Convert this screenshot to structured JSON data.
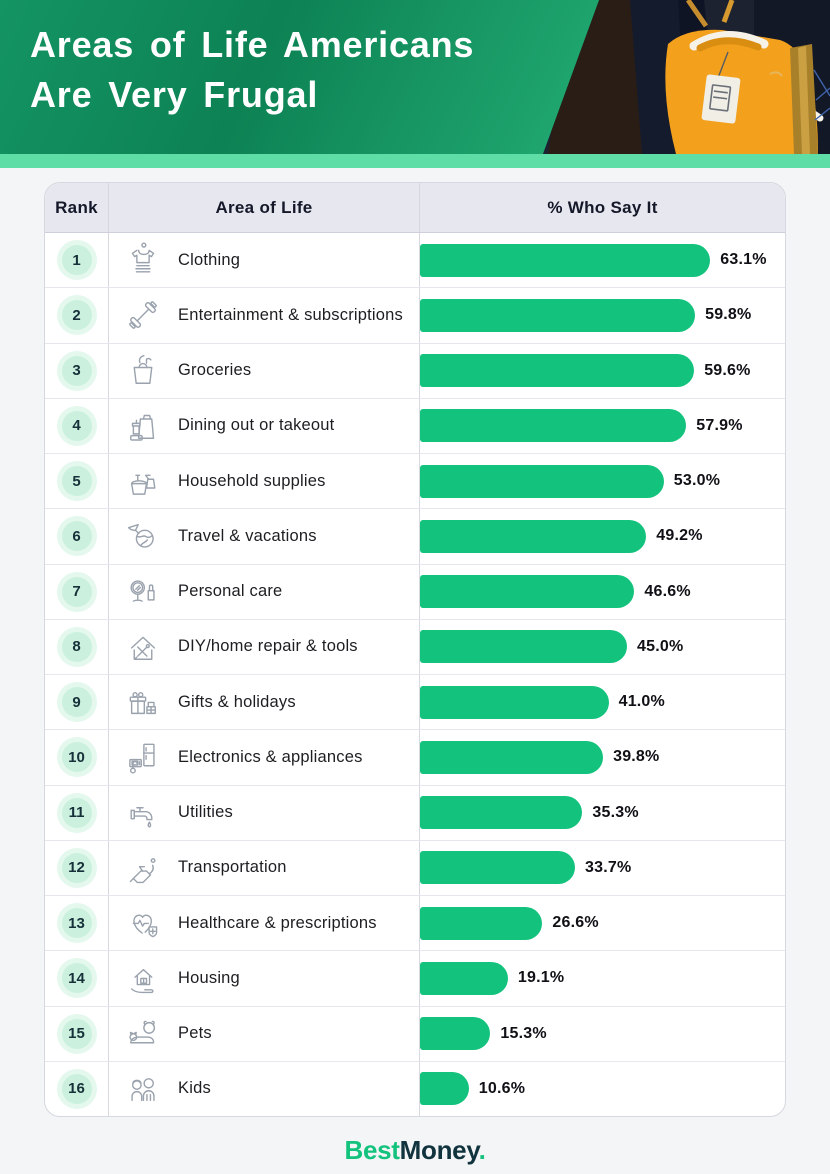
{
  "header": {
    "title_line1": "Areas of Life Americans",
    "title_line2": "Are Very Frugal",
    "photo": "orange-tshirt-on-rack-photo"
  },
  "table": {
    "columns": [
      "Rank",
      "Area of Life",
      "% Who Say It"
    ],
    "rows": [
      {
        "rank": "1",
        "label": "Clothing",
        "icon": "clothing-icon",
        "value": 63.1,
        "value_label": "63.1%"
      },
      {
        "rank": "2",
        "label": "Entertainment & subscriptions",
        "icon": "dumbbell-icon",
        "value": 59.8,
        "value_label": "59.8%"
      },
      {
        "rank": "3",
        "label": "Groceries",
        "icon": "grocery-bag-icon",
        "value": 59.6,
        "value_label": "59.6%"
      },
      {
        "rank": "4",
        "label": "Dining out or takeout",
        "icon": "takeout-icon",
        "value": 57.9,
        "value_label": "57.9%"
      },
      {
        "rank": "5",
        "label": "Household supplies",
        "icon": "cleaning-icon",
        "value": 53.0,
        "value_label": "53.0%"
      },
      {
        "rank": "6",
        "label": "Travel & vacations",
        "icon": "travel-globe-icon",
        "value": 49.2,
        "value_label": "49.2%"
      },
      {
        "rank": "7",
        "label": "Personal care",
        "icon": "mirror-lipstick-icon",
        "value": 46.6,
        "value_label": "46.6%"
      },
      {
        "rank": "8",
        "label": "DIY/home repair & tools",
        "icon": "house-tools-icon",
        "value": 45.0,
        "value_label": "45.0%"
      },
      {
        "rank": "9",
        "label": "Gifts & holidays",
        "icon": "gifts-icon",
        "value": 41.0,
        "value_label": "41.0%"
      },
      {
        "rank": "10",
        "label": "Electronics & appliances",
        "icon": "appliances-icon",
        "value": 39.8,
        "value_label": "39.8%"
      },
      {
        "rank": "11",
        "label": "Utilities",
        "icon": "faucet-icon",
        "value": 35.3,
        "value_label": "35.3%"
      },
      {
        "rank": "12",
        "label": "Transportation",
        "icon": "fuel-pump-icon",
        "value": 33.7,
        "value_label": "33.7%"
      },
      {
        "rank": "13",
        "label": "Healthcare & prescriptions",
        "icon": "heart-health-icon",
        "value": 26.6,
        "value_label": "26.6%"
      },
      {
        "rank": "14",
        "label": "Housing",
        "icon": "house-hand-icon",
        "value": 19.1,
        "value_label": "19.1%"
      },
      {
        "rank": "15",
        "label": "Pets",
        "icon": "pets-icon",
        "value": 15.3,
        "value_label": "15.3%"
      },
      {
        "rank": "16",
        "label": "Kids",
        "icon": "kids-icon",
        "value": 10.6,
        "value_label": "10.6%"
      }
    ]
  },
  "footer": {
    "logo_best": "Best",
    "logo_money": "Money",
    "logo_period": "."
  },
  "colors": {
    "bar_green": "#13c37d",
    "header_gradient_dark": "#0d8254",
    "header_gradient_light": "#2fbc86",
    "mint_strip": "#5edda7",
    "rank_badge_mint": "#cbf1de",
    "table_header_bg": "#e7e8ef",
    "logo_dark": "#11333e"
  },
  "chart_data": {
    "type": "bar",
    "orientation": "horizontal",
    "title": "Areas of Life Americans Are Very Frugal",
    "categories": [
      "Clothing",
      "Entertainment & subscriptions",
      "Groceries",
      "Dining out or takeout",
      "Household supplies",
      "Travel & vacations",
      "Personal care",
      "DIY/home repair & tools",
      "Gifts & holidays",
      "Electronics & appliances",
      "Utilities",
      "Transportation",
      "Healthcare & prescriptions",
      "Housing",
      "Pets",
      "Kids"
    ],
    "values": [
      63.1,
      59.8,
      59.6,
      57.9,
      53.0,
      49.2,
      46.6,
      45.0,
      41.0,
      39.8,
      35.3,
      33.7,
      26.6,
      19.1,
      15.3,
      10.6
    ],
    "value_labels": [
      "63.1%",
      "59.8%",
      "59.6%",
      "57.9%",
      "53.0%",
      "49.2%",
      "46.6%",
      "45.0%",
      "41.0%",
      "39.8%",
      "35.3%",
      "33.7%",
      "26.6%",
      "19.1%",
      "15.3%",
      "10.6%"
    ],
    "xlabel": "% Who Say It",
    "ylabel": "Area of Life",
    "xlim": [
      0,
      70
    ],
    "grid": false,
    "legend": false,
    "bar_color": "#13c37d",
    "data_labels": "outside-end"
  }
}
